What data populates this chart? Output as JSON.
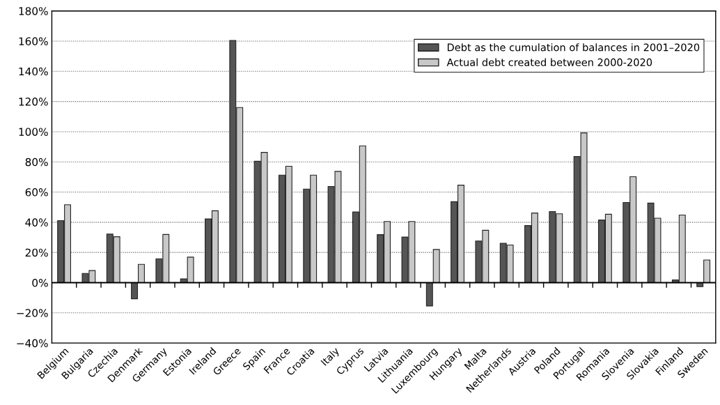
{
  "chart_data": {
    "type": "bar",
    "categories": [
      "Belgium",
      "Bulgaria",
      "Czechia",
      "Denmark",
      "Germany",
      "Estonia",
      "Ireland",
      "Greece",
      "Spain",
      "France",
      "Croatia",
      "Italy",
      "Cyprus",
      "Latvia",
      "Lithuania",
      "Luxembourg",
      "Hungary",
      "Malta",
      "Netherlands",
      "Austria",
      "Poland",
      "Portugal",
      "Romania",
      "Slovenia",
      "Slovakia",
      "Finland",
      "Sweden"
    ],
    "series": [
      {
        "name": "Debt as the cumulation of balances in 2001–2020",
        "color": "#555555",
        "values": [
          41.1,
          6.1,
          32.2,
          -10.7,
          15.8,
          2.5,
          42.2,
          160.4,
          80.4,
          71.2,
          62.0,
          63.7,
          46.8,
          31.8,
          30.2,
          -15.4,
          53.6,
          27.6,
          26.1,
          37.8,
          47.1,
          83.5,
          41.5,
          53.1,
          52.7,
          1.8,
          -2.6
        ]
      },
      {
        "name": "Actual debt created between 2000-2020",
        "color": "#c8c8c8",
        "values": [
          51.6,
          8.0,
          30.4,
          12.1,
          31.9,
          16.9,
          47.6,
          116.0,
          86.3,
          77.1,
          71.2,
          73.7,
          90.6,
          40.5,
          40.5,
          22.0,
          64.6,
          34.7,
          24.9,
          46.1,
          45.6,
          99.2,
          45.3,
          70.2,
          42.7,
          44.8,
          15.0
        ]
      }
    ],
    "ylim": [
      -40,
      180
    ],
    "yticks": [
      {
        "value": -40,
        "label": "−40%"
      },
      {
        "value": -20,
        "label": "−20%"
      },
      {
        "value": 0,
        "label": "0%"
      },
      {
        "value": 20,
        "label": "20%"
      },
      {
        "value": 40,
        "label": "40%"
      },
      {
        "value": 60,
        "label": "60%"
      },
      {
        "value": 80,
        "label": "80%"
      },
      {
        "value": 100,
        "label": "100%"
      },
      {
        "value": 120,
        "label": "120%"
      },
      {
        "value": 140,
        "label": "140%"
      },
      {
        "value": 160,
        "label": "160%"
      },
      {
        "value": 180,
        "label": "180%"
      }
    ],
    "ref_lines": [
      {
        "axis": "y",
        "value": 0,
        "color": "#000000",
        "line_style": "solid"
      }
    ],
    "grid": "y",
    "legend": "top right"
  }
}
